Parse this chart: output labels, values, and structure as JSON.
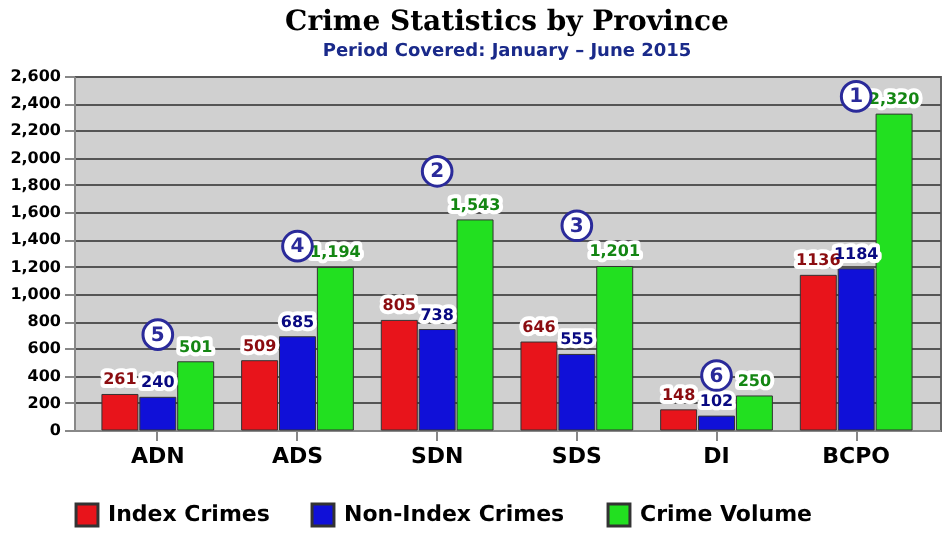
{
  "chart_data": {
    "type": "bar",
    "title": "Crime Statistics by Province",
    "subtitle": "Period Covered: January – June 2015",
    "categories": [
      "ADN",
      "ADS",
      "SDN",
      "SDS",
      "DI",
      "BCPO"
    ],
    "series": [
      {
        "name": "Index Crimes",
        "color": "#e8141b",
        "values": [
          261,
          509,
          805,
          646,
          148,
          1136
        ],
        "value_labels": [
          "261",
          "509",
          "805",
          "646",
          "148",
          "1136"
        ]
      },
      {
        "name": "Non-Index Crimes",
        "color": "#1010d8",
        "values": [
          240,
          685,
          738,
          555,
          102,
          1184
        ],
        "value_labels": [
          "240",
          "685",
          "738",
          "555",
          "102",
          "1184"
        ]
      },
      {
        "name": "Crime Volume",
        "color": "#22e020",
        "values": [
          501,
          1194,
          1543,
          1201,
          250,
          2320
        ],
        "value_labels": [
          "501",
          "1,194",
          "1,543",
          "1,201",
          "250",
          "2,320"
        ]
      }
    ],
    "ylim": [
      0,
      2600
    ],
    "yticks": [
      {
        "value": 0,
        "label": "0"
      },
      {
        "value": 200,
        "label": "200"
      },
      {
        "value": 400,
        "label": "400"
      },
      {
        "value": 600,
        "label": "600"
      },
      {
        "value": 800,
        "label": "800"
      },
      {
        "value": 1000,
        "label": "1,000"
      },
      {
        "value": 1200,
        "label": "1,200"
      },
      {
        "value": 1400,
        "label": "1,400"
      },
      {
        "value": 1600,
        "label": "1,600"
      },
      {
        "value": 1800,
        "label": "1,800"
      },
      {
        "value": 2000,
        "label": "2,000"
      },
      {
        "value": 2200,
        "label": "2,200"
      },
      {
        "value": 2400,
        "label": "2,400"
      },
      {
        "value": 2600,
        "label": "2,600"
      }
    ],
    "grid": "y",
    "legend": "bottom",
    "annotations": [
      {
        "text": "1",
        "x": "BCPO",
        "y": 2450
      },
      {
        "text": "2",
        "x": "SDN",
        "y": 1900
      },
      {
        "text": "3",
        "x": "SDS",
        "y": 1500
      },
      {
        "text": "4",
        "x": "ADS",
        "y": 1350
      },
      {
        "text": "5",
        "x": "ADN",
        "y": 700
      },
      {
        "text": "6",
        "x": "DI",
        "y": 400
      }
    ]
  }
}
